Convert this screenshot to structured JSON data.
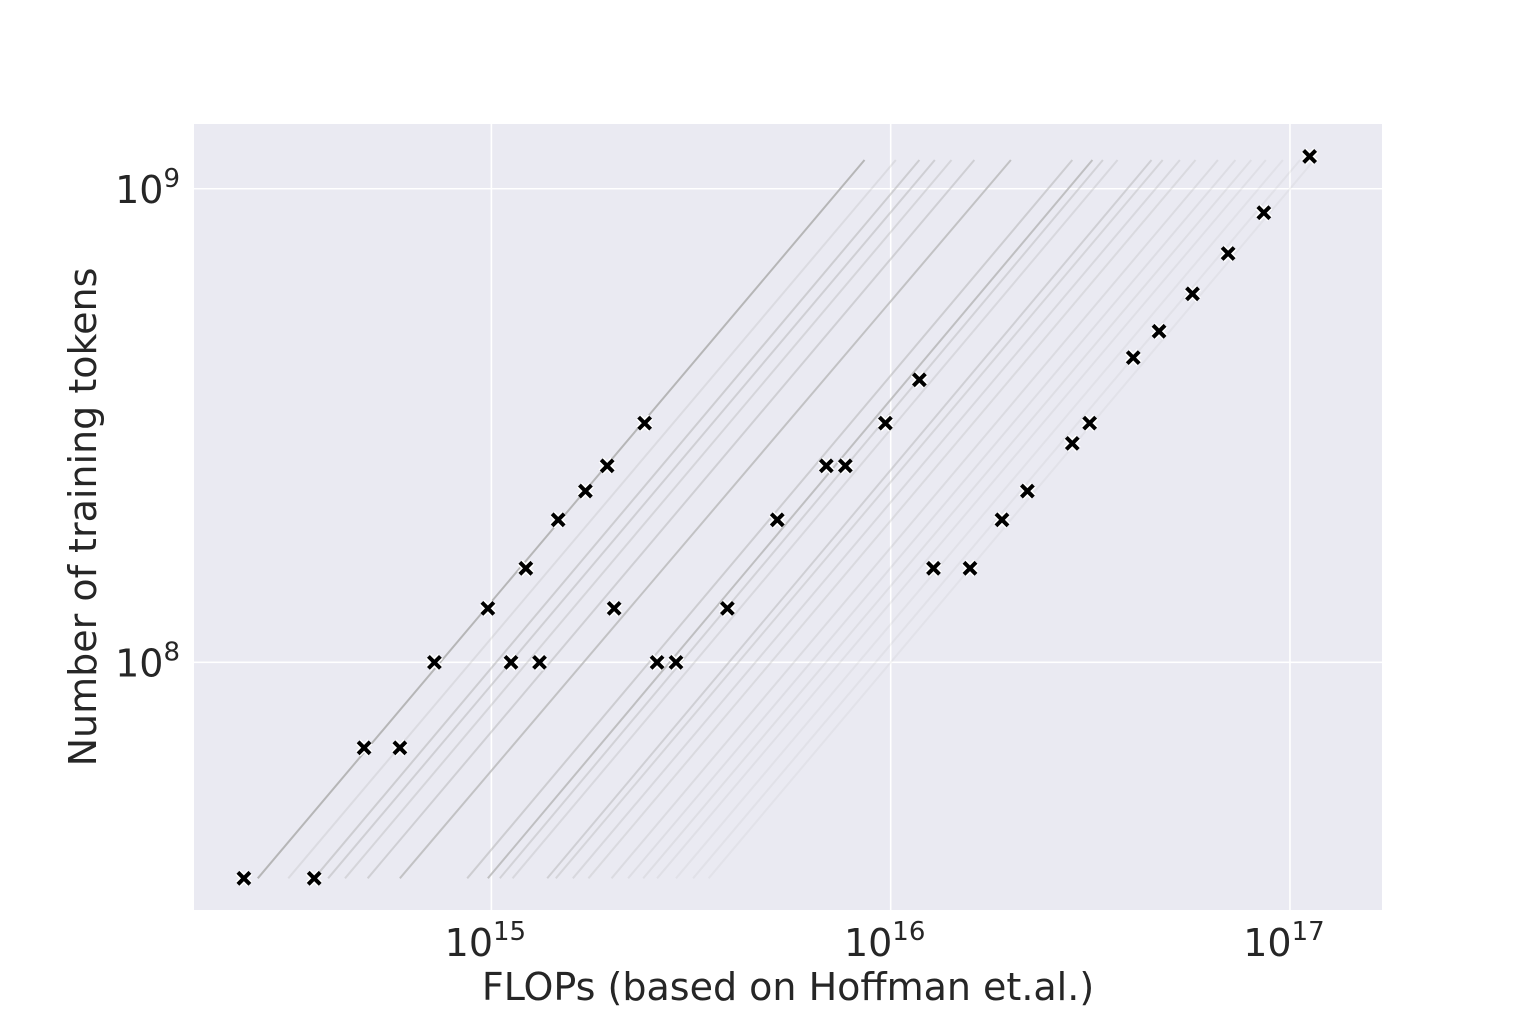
{
  "chart_data": {
    "type": "scatter",
    "title": "",
    "xlabel": "FLOPs (based on Hoffman et.al.)",
    "ylabel": "Number of training tokens",
    "xscale": "log",
    "yscale": "log",
    "xlim": [
      180000000000000.0,
      1.7e+17
    ],
    "ylim": [
      30000000.0,
      1370000000.0
    ],
    "grid": true,
    "x_ticks": [
      {
        "value": 1000000000000000.0,
        "base": "10",
        "exp": "15"
      },
      {
        "value": 1e+16,
        "base": "10",
        "exp": "16"
      },
      {
        "value": 1e+17,
        "base": "10",
        "exp": "17"
      }
    ],
    "y_ticks": [
      {
        "value": 100000000.0,
        "base": "10",
        "exp": "8"
      },
      {
        "value": 1000000000.0,
        "base": "10",
        "exp": "9"
      }
    ],
    "colors": {
      "background": "#eaeaf2",
      "grid": "#ffffff",
      "marker": "#000000",
      "line": "#b0b0b0"
    },
    "series": [
      {
        "marker": "x",
        "points": [
          {
            "x": 240000000000000.0,
            "y": 35000000.0
          },
          {
            "x": 360000000000000.0,
            "y": 35000000.0
          },
          {
            "x": 480000000000000.0,
            "y": 66000000.0
          },
          {
            "x": 590000000000000.0,
            "y": 66000000.0
          },
          {
            "x": 720000000000000.0,
            "y": 100000000.0
          },
          {
            "x": 980000000000000.0,
            "y": 130000000.0
          },
          {
            "x": 1120000000000000.0,
            "y": 100000000.0
          },
          {
            "x": 1220000000000000.0,
            "y": 158000000.0
          },
          {
            "x": 1320000000000000.0,
            "y": 100000000.0
          },
          {
            "x": 1470000000000000.0,
            "y": 200000000.0
          },
          {
            "x": 1720000000000000.0,
            "y": 230000000.0
          },
          {
            "x": 1950000000000000.0,
            "y": 260000000.0
          },
          {
            "x": 2030000000000000.0,
            "y": 130000000.0
          },
          {
            "x": 2420000000000000.0,
            "y": 320000000.0
          },
          {
            "x": 2600000000000000.0,
            "y": 100000000.0
          },
          {
            "x": 2900000000000000.0,
            "y": 100000000.0
          },
          {
            "x": 3900000000000000.0,
            "y": 130000000.0
          },
          {
            "x": 5200000000000000.0,
            "y": 200000000.0
          },
          {
            "x": 6900000000000000.0,
            "y": 260000000.0
          },
          {
            "x": 7700000000000000.0,
            "y": 260000000.0
          },
          {
            "x": 9700000000000000.0,
            "y": 320000000.0
          },
          {
            "x": 1.18e+16,
            "y": 395000000.0
          },
          {
            "x": 1.28e+16,
            "y": 158000000.0
          },
          {
            "x": 1.58e+16,
            "y": 158000000.0
          },
          {
            "x": 1.9e+16,
            "y": 200000000.0
          },
          {
            "x": 2.2e+16,
            "y": 230000000.0
          },
          {
            "x": 2.85e+16,
            "y": 290000000.0
          },
          {
            "x": 3.15e+16,
            "y": 320000000.0
          },
          {
            "x": 4.05e+16,
            "y": 440000000.0
          },
          {
            "x": 4.7e+16,
            "y": 500000000.0
          },
          {
            "x": 5.7e+16,
            "y": 600000000.0
          },
          {
            "x": 7e+16,
            "y": 730000000.0
          },
          {
            "x": 8.6e+16,
            "y": 890000000.0
          },
          {
            "x": 1.12e+17,
            "y": 1170000000.0
          }
        ]
      }
    ],
    "lines": [
      {
        "x0": 260000000000000.0,
        "y0": 35000000.0,
        "x1": 8600000000000000.0,
        "y1": 1150000000.0,
        "opacity": 0.9
      },
      {
        "x0": 310000000000000.0,
        "y0": 35000000.0,
        "x1": 1.03e+16,
        "y1": 1150000000.0,
        "opacity": 0.25
      },
      {
        "x0": 360000000000000.0,
        "y0": 35000000.0,
        "x1": 1.18e+16,
        "y1": 1150000000.0,
        "opacity": 0.5
      },
      {
        "x0": 390000000000000.0,
        "y0": 35000000.0,
        "x1": 1.29e+16,
        "y1": 1150000000.0,
        "opacity": 0.45
      },
      {
        "x0": 430000000000000.0,
        "y0": 35000000.0,
        "x1": 1.42e+16,
        "y1": 1150000000.0,
        "opacity": 0.35
      },
      {
        "x0": 490000000000000.0,
        "y0": 35000000.0,
        "x1": 1.62e+16,
        "y1": 1150000000.0,
        "opacity": 0.45
      },
      {
        "x0": 590000000000000.0,
        "y0": 35000000.0,
        "x1": 2e+16,
        "y1": 1150000000.0,
        "opacity": 0.7
      },
      {
        "x0": 870000000000000.0,
        "y0": 35000000.0,
        "x1": 2.85e+16,
        "y1": 1150000000.0,
        "opacity": 0.5
      },
      {
        "x0": 980000000000000.0,
        "y0": 35000000.0,
        "x1": 3.2e+16,
        "y1": 1150000000.0,
        "opacity": 0.75
      },
      {
        "x0": 1050000000000000.0,
        "y0": 35000000.0,
        "x1": 3.4e+16,
        "y1": 1150000000.0,
        "opacity": 0.4
      },
      {
        "x0": 1130000000000000.0,
        "y0": 35000000.0,
        "x1": 3.7e+16,
        "y1": 1150000000.0,
        "opacity": 0.3
      },
      {
        "x0": 1380000000000000.0,
        "y0": 35000000.0,
        "x1": 4.5e+16,
        "y1": 1150000000.0,
        "opacity": 0.45
      },
      {
        "x0": 1450000000000000.0,
        "y0": 35000000.0,
        "x1": 4.8e+16,
        "y1": 1150000000.0,
        "opacity": 0.35
      },
      {
        "x0": 1600000000000000.0,
        "y0": 35000000.0,
        "x1": 5.3e+16,
        "y1": 1150000000.0,
        "opacity": 0.3
      },
      {
        "x0": 1750000000000000.0,
        "y0": 35000000.0,
        "x1": 5.8e+16,
        "y1": 1150000000.0,
        "opacity": 0.28
      },
      {
        "x0": 2000000000000000.0,
        "y0": 35000000.0,
        "x1": 6.6e+16,
        "y1": 1150000000.0,
        "opacity": 0.25
      },
      {
        "x0": 2200000000000000.0,
        "y0": 35000000.0,
        "x1": 7.3e+16,
        "y1": 1150000000.0,
        "opacity": 0.22
      },
      {
        "x0": 2400000000000000.0,
        "y0": 35000000.0,
        "x1": 8e+16,
        "y1": 1150000000.0,
        "opacity": 0.2
      },
      {
        "x0": 2600000000000000.0,
        "y0": 35000000.0,
        "x1": 8.7e+16,
        "y1": 1150000000.0,
        "opacity": 0.18
      },
      {
        "x0": 2900000000000000.0,
        "y0": 35000000.0,
        "x1": 9.6e+16,
        "y1": 1150000000.0,
        "opacity": 0.15
      },
      {
        "x0": 3200000000000000.0,
        "y0": 35000000.0,
        "x1": 1.06e+17,
        "y1": 1150000000.0,
        "opacity": 0.15
      },
      {
        "x0": 3500000000000000.0,
        "y0": 35000000.0,
        "x1": 1.15e+17,
        "y1": 1150000000.0,
        "opacity": 0.12
      }
    ]
  }
}
